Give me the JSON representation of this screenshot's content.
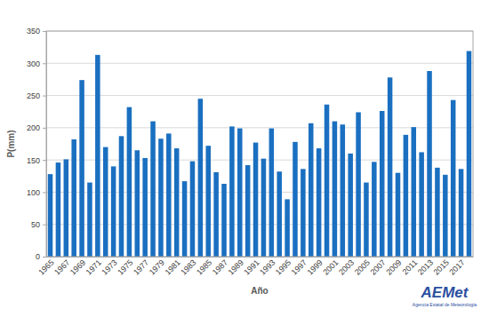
{
  "chart_data": {
    "type": "bar",
    "x_label": "Año",
    "y_label": "P(mm)",
    "annotations": [
      "AEMet",
      "Agencia Estatal de Meteorología"
    ],
    "categories": [
      "1965",
      null,
      "1967",
      null,
      "1969",
      null,
      "1971",
      null,
      "1973",
      null,
      "1975",
      null,
      "1977",
      null,
      "1979",
      null,
      "1981",
      null,
      "1983",
      null,
      "1985",
      null,
      "1987",
      null,
      "1989",
      null,
      "1991",
      null,
      "1993",
      null,
      "1995",
      null,
      "1997",
      null,
      "1999",
      null,
      "2001",
      null,
      "2003",
      null,
      "2005",
      null,
      "2007",
      null,
      "2009",
      null,
      "2011",
      null,
      "2013",
      null,
      "2015",
      null,
      "2017",
      null
    ],
    "values": [
      128,
      146,
      151,
      182,
      274,
      115,
      313,
      170,
      140,
      187,
      232,
      165,
      153,
      210,
      183,
      191,
      168,
      117,
      148,
      245,
      172,
      131,
      113,
      202,
      199,
      142,
      177,
      152,
      199,
      132,
      89,
      178,
      136,
      207,
      168,
      236,
      210,
      205,
      160,
      224,
      115,
      147,
      226,
      278,
      130,
      189,
      201,
      162,
      288,
      138,
      127,
      243,
      136,
      319
    ],
    "color": "#1a6fc0",
    "ylim": [
      0,
      350
    ],
    "yticks": [
      0,
      50,
      100,
      150,
      200,
      250,
      300,
      350
    ],
    "grid": true
  }
}
